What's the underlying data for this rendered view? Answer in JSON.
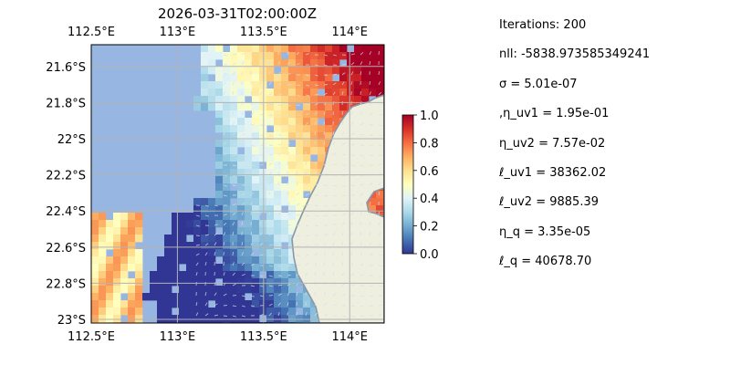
{
  "chart_data": {
    "type": "heatmap",
    "title": "2026-03-31T02:00:00Z",
    "x_axis": {
      "ticks": [
        112.5,
        113,
        113.5,
        114
      ],
      "tick_labels": [
        "112.5°E",
        "113°E",
        "113.5°E",
        "114°E"
      ],
      "range": [
        112.5,
        114.2
      ],
      "top_tick_labels": true,
      "bottom_tick_labels": true
    },
    "y_axis": {
      "ticks": [
        -21.6,
        -21.8,
        -22,
        -22.2,
        -22.4,
        -22.6,
        -22.8,
        -23
      ],
      "tick_labels": [
        "21.6°S",
        "21.8°S",
        "22°S",
        "22.2°S",
        "22.4°S",
        "22.6°S",
        "22.8°S",
        "23°S"
      ],
      "range": [
        -23.02,
        -21.48
      ]
    },
    "grid": true,
    "colorbar": {
      "range": [
        0,
        1
      ],
      "ticks": [
        0.0,
        0.2,
        0.4,
        0.6,
        0.8,
        1.0
      ],
      "tick_labels": [
        "0.0",
        "0.2",
        "0.4",
        "0.6",
        "0.8",
        "1.0"
      ],
      "colormap": "RdYlBu_r"
    },
    "colors": {
      "ocean": "#98b6e2",
      "land": "#efefdf",
      "coast": "#8896a8",
      "grid": "#b3b3b3",
      "arrows": "#d8dce8"
    },
    "vector_overlay": true
  },
  "params": [
    "Iterations: 200",
    "nll: -5838.973585349241",
    "σ = 5.01e-07",
    ",η_uv1 = 1.95e-01",
    "η_uv2 = 7.57e-02",
    "ℓ_uv1 = 38362.02",
    "ℓ_uv2 = 9885.39",
    "η_q = 3.35e-05",
    "ℓ_q = 40678.70"
  ]
}
